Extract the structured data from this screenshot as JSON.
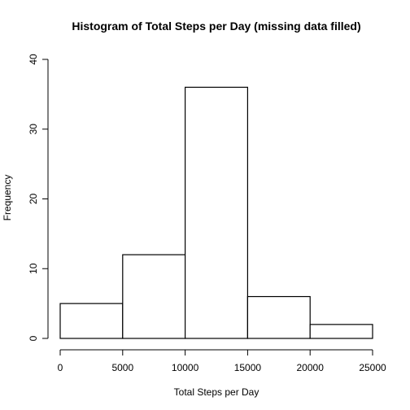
{
  "chart_data": {
    "type": "bar",
    "title": "Histogram of Total Steps per Day (missing data filled)",
    "xlabel": "Total Steps per Day",
    "ylabel": "Frequency",
    "bins": [
      {
        "from": 0,
        "to": 5000,
        "count": 5
      },
      {
        "from": 5000,
        "to": 10000,
        "count": 12
      },
      {
        "from": 10000,
        "to": 15000,
        "count": 36
      },
      {
        "from": 15000,
        "to": 20000,
        "count": 6
      },
      {
        "from": 20000,
        "to": 25000,
        "count": 2
      }
    ],
    "xlim": [
      0,
      25000
    ],
    "ylim": [
      0,
      40
    ],
    "x_ticks": [
      "0",
      "5000",
      "10000",
      "15000",
      "20000",
      "25000"
    ],
    "x_tick_values": [
      0,
      5000,
      10000,
      15000,
      20000,
      25000
    ],
    "y_ticks": [
      "0",
      "10",
      "20",
      "30",
      "40"
    ],
    "y_tick_values": [
      0,
      10,
      20,
      30,
      40
    ],
    "grid": false,
    "colors": {
      "bar_fill": "#ffffff",
      "bar_stroke": "#000000",
      "axis": "#000000"
    }
  }
}
